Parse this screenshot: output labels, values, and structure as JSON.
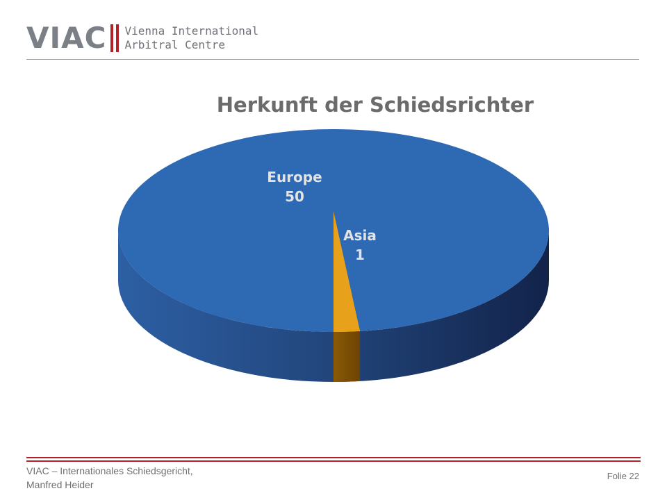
{
  "header": {
    "logo_mark": "VIAC",
    "logo_line1": "Vienna International",
    "logo_line2": "Arbitral Centre"
  },
  "footer": {
    "line1": "VIAC – Internationales Schiedsgericht,",
    "line2": "Manfred Heider",
    "slide_number": "Folie 22"
  },
  "colors": {
    "europe": "#2e69b4",
    "asia": "#e8a11a",
    "accent": "#b3202a"
  },
  "chart_data": {
    "type": "pie",
    "title": "Herkunft der Schiedsrichter",
    "slices": [
      {
        "label": "Europe",
        "value": 50
      },
      {
        "label": "Asia",
        "value": 1
      }
    ]
  }
}
